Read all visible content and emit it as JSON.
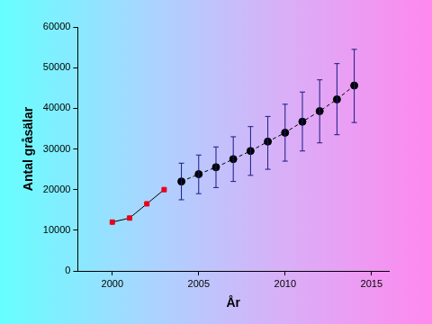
{
  "chart_data": {
    "type": "line",
    "x_label": "År",
    "y_label": "Antal gråsälar",
    "xlim": [
      1998,
      2016
    ],
    "xticks": [
      2000,
      2005,
      2010,
      2015
    ],
    "ylim": [
      0,
      60000
    ],
    "yticks": [
      0,
      10000,
      20000,
      30000,
      40000,
      50000,
      60000
    ],
    "grid": false,
    "series": [
      {
        "color": "#e8001c",
        "marker": "square",
        "line_style": "solid",
        "x": [
          2000,
          2001,
          2002,
          2003
        ],
        "values": [
          12000,
          13000,
          16500,
          20000
        ]
      },
      {
        "color": "#000000",
        "marker": "circle",
        "line_style": "dashed",
        "x": [
          2004,
          2005,
          2006,
          2007,
          2008,
          2009,
          2010,
          2011,
          2012,
          2013,
          2014
        ],
        "values": [
          22000,
          23800,
          25500,
          27500,
          29500,
          31800,
          34000,
          36700,
          39300,
          42200,
          45600
        ],
        "error_low": [
          17500,
          19000,
          20500,
          22000,
          23500,
          25000,
          27000,
          29500,
          31500,
          33500,
          36500
        ],
        "error_high": [
          26500,
          28500,
          30500,
          33000,
          35500,
          38000,
          41000,
          44000,
          47000,
          51000,
          54500
        ]
      }
    ]
  }
}
